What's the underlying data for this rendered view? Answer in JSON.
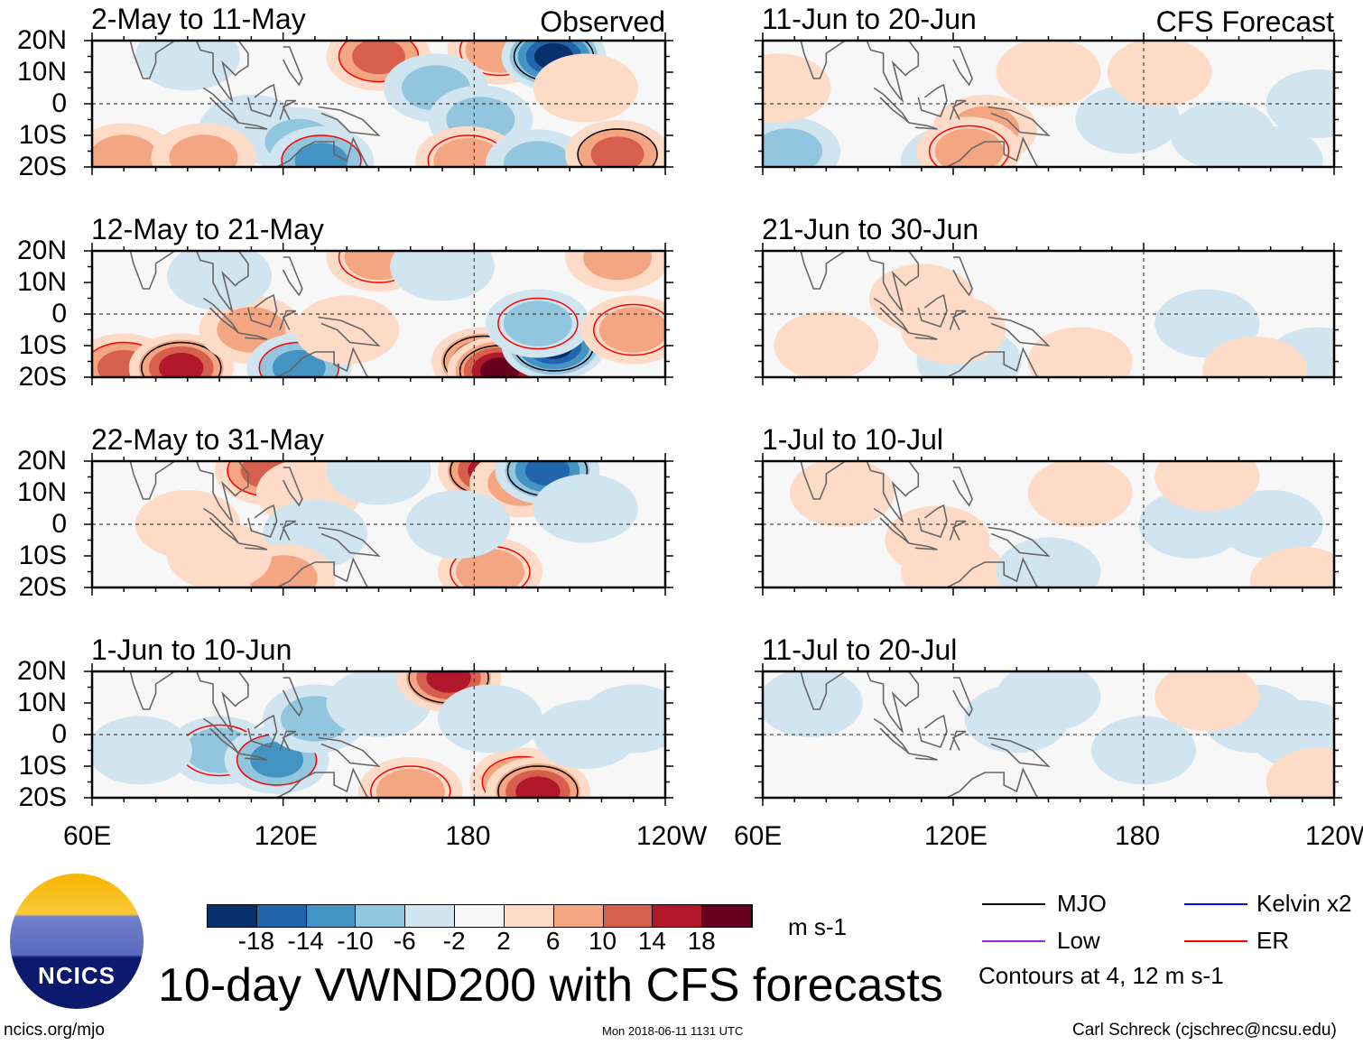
{
  "observed_label": "Observed",
  "forecast_label": "CFS Forecast",
  "lat_labels": [
    "20N",
    "10N",
    "0",
    "10S",
    "20S"
  ],
  "lon_labels": [
    "60E",
    "120E",
    "180",
    "120W"
  ],
  "panels": [
    {
      "title": "2-May to 11-May",
      "blobs": [
        [
          150,
          15,
          10
        ],
        [
          188,
          17,
          8
        ],
        [
          205,
          15,
          -18
        ],
        [
          110,
          -8,
          -4
        ],
        [
          125,
          -12,
          -6
        ],
        [
          132,
          -18,
          -10
        ],
        [
          168,
          5,
          -6
        ],
        [
          182,
          -5,
          -6
        ],
        [
          70,
          -17,
          6
        ],
        [
          95,
          -17,
          6
        ],
        [
          178,
          -18,
          8
        ],
        [
          200,
          -19,
          -6
        ],
        [
          225,
          -16,
          12
        ],
        [
          215,
          5,
          4
        ],
        [
          90,
          15,
          -3
        ]
      ]
    },
    {
      "title": "12-May to 21-May",
      "blobs": [
        [
          70,
          -17,
          10
        ],
        [
          88,
          -17,
          16
        ],
        [
          110,
          -5,
          6
        ],
        [
          125,
          -17,
          -10
        ],
        [
          150,
          18,
          8
        ],
        [
          170,
          15,
          -4
        ],
        [
          183,
          -15,
          14
        ],
        [
          188,
          -18,
          18
        ],
        [
          205,
          -10,
          -20
        ],
        [
          200,
          -3,
          -8
        ],
        [
          230,
          -5,
          8
        ],
        [
          225,
          18,
          6
        ],
        [
          100,
          12,
          -3
        ],
        [
          140,
          -5,
          4
        ]
      ]
    },
    {
      "title": "22-May to 31-May",
      "blobs": [
        [
          115,
          17,
          10
        ],
        [
          128,
          10,
          4
        ],
        [
          130,
          -3,
          -4
        ],
        [
          150,
          17,
          -4
        ],
        [
          185,
          17,
          16
        ],
        [
          195,
          13,
          6
        ],
        [
          203,
          17,
          -14
        ],
        [
          215,
          5,
          -4
        ],
        [
          185,
          -15,
          8
        ],
        [
          175,
          0,
          -4
        ],
        [
          120,
          -17,
          6
        ],
        [
          90,
          0,
          2
        ],
        [
          100,
          -10,
          4
        ]
      ]
    },
    {
      "title": "1-Jun to 10-Jun",
      "blobs": [
        [
          100,
          -5,
          -8
        ],
        [
          118,
          -8,
          -10
        ],
        [
          130,
          5,
          -6
        ],
        [
          150,
          10,
          -4
        ],
        [
          172,
          18,
          14
        ],
        [
          195,
          -15,
          10
        ],
        [
          200,
          -18,
          16
        ],
        [
          160,
          -18,
          8
        ],
        [
          215,
          0,
          -4
        ],
        [
          185,
          5,
          -4
        ],
        [
          230,
          5,
          -4
        ],
        [
          75,
          -5,
          -4
        ]
      ]
    },
    {
      "title": "11-Jun to 20-Jun",
      "blobs": [
        [
          68,
          -15,
          -6
        ],
        [
          120,
          -18,
          -4
        ],
        [
          130,
          -8,
          6
        ],
        [
          125,
          -15,
          8
        ],
        [
          175,
          -5,
          -4
        ],
        [
          205,
          -10,
          -4
        ],
        [
          220,
          -18,
          -4
        ],
        [
          235,
          0,
          -3
        ],
        [
          65,
          5,
          3
        ],
        [
          185,
          10,
          4
        ],
        [
          150,
          10,
          2
        ]
      ]
    },
    {
      "title": "21-Jun to 30-Jun",
      "blobs": [
        [
          80,
          -10,
          4
        ],
        [
          110,
          5,
          3
        ],
        [
          125,
          -15,
          -3
        ],
        [
          160,
          -15,
          3
        ],
        [
          200,
          -3,
          -3
        ],
        [
          235,
          -15,
          -3
        ],
        [
          215,
          -18,
          3
        ],
        [
          120,
          -5,
          3
        ]
      ]
    },
    {
      "title": "1-Jul to 10-Jul",
      "blobs": [
        [
          115,
          -5,
          4
        ],
        [
          120,
          -15,
          3
        ],
        [
          150,
          -15,
          -3
        ],
        [
          195,
          0,
          -3
        ],
        [
          220,
          0,
          -3
        ],
        [
          200,
          15,
          3
        ],
        [
          230,
          -18,
          4
        ],
        [
          85,
          10,
          3
        ],
        [
          160,
          10,
          3
        ]
      ]
    },
    {
      "title": "11-Jul to 20-Jul",
      "blobs": [
        [
          75,
          10,
          -3
        ],
        [
          140,
          5,
          -3
        ],
        [
          180,
          -5,
          -3
        ],
        [
          215,
          5,
          -4
        ],
        [
          230,
          0,
          -4
        ],
        [
          200,
          12,
          3
        ],
        [
          235,
          -15,
          3
        ],
        [
          150,
          12,
          -3
        ]
      ]
    }
  ],
  "colorbar": {
    "colors": [
      "#08306b",
      "#2166ac",
      "#4393c3",
      "#92c5de",
      "#d1e5f0",
      "#f7f7f7",
      "#fddbc7",
      "#f4a582",
      "#d6604d",
      "#b2182b",
      "#67001f"
    ],
    "ticks": [
      "-18",
      "-14",
      "-10",
      "-6",
      "-2",
      "2",
      "6",
      "10",
      "14",
      "18"
    ],
    "units": "m s-1"
  },
  "legend": {
    "items": [
      {
        "label": "MJO",
        "color": "#000000"
      },
      {
        "label": "Kelvin x2",
        "color": "#0000ff"
      },
      {
        "label": "Low",
        "color": "#a020f0"
      },
      {
        "label": "ER",
        "color": "#ff0000"
      }
    ],
    "contours_note": "Contours at 4, 12 m s-1"
  },
  "logo_text": "NCICS",
  "main_title": "10-day VWND200 with CFS forecasts",
  "footer": {
    "left": "ncics.org/mjo",
    "center": "Mon 2018-06-11 1131 UTC",
    "right": "Carl Schreck (cjschrec@ncsu.edu)"
  }
}
